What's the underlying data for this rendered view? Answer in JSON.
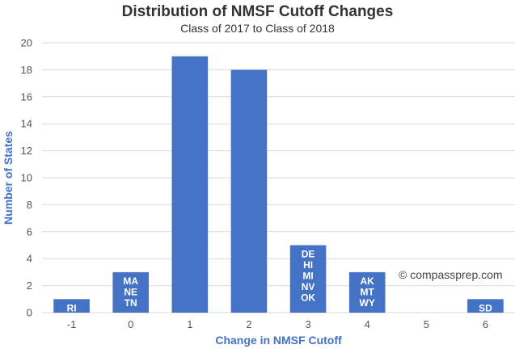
{
  "chart_data": {
    "type": "bar",
    "title": "Distribution of NMSF Cutoff Changes",
    "subtitle": "Class of 2017 to Class of 2018",
    "xlabel": "Change in NMSF Cutoff",
    "ylabel": "Number of States",
    "categories": [
      "-1",
      "0",
      "1",
      "2",
      "3",
      "4",
      "5",
      "6"
    ],
    "values": [
      1,
      3,
      19,
      18,
      5,
      3,
      0,
      1
    ],
    "bar_labels": [
      [
        "RI"
      ],
      [
        "MA",
        "NE",
        "TN"
      ],
      [],
      [],
      [
        "DE",
        "HI",
        "MI",
        "NV",
        "OK"
      ],
      [
        "AK",
        "MT",
        "WY"
      ],
      [],
      [
        "SD"
      ]
    ],
    "ylim": [
      0,
      20
    ],
    "yticks": [
      0,
      2,
      4,
      6,
      8,
      10,
      12,
      14,
      16,
      18,
      20
    ],
    "grid": true,
    "bar_color": "#4472c4",
    "watermark": "© compassprep.com"
  }
}
